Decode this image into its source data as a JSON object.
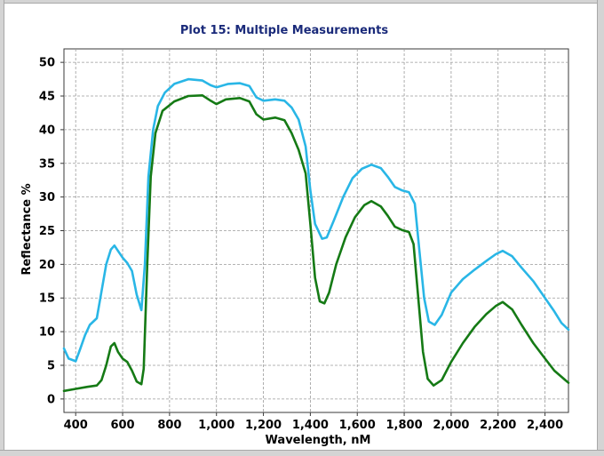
{
  "chart_data": {
    "type": "line",
    "title": "Plot 15: Multiple Measurements",
    "xlabel": "Wavelength, nM",
    "ylabel": "Reflectance %",
    "xlim": [
      350,
      2500
    ],
    "ylim": [
      -2,
      52
    ],
    "x_ticks": [
      400,
      600,
      800,
      1000,
      1200,
      1400,
      1600,
      1800,
      2000,
      2200,
      2400
    ],
    "x_tick_labels": [
      "400",
      "600",
      "800",
      "1,000",
      "1,200",
      "1,400",
      "1,600",
      "1,800",
      "2,000",
      "2,200",
      "2,400"
    ],
    "y_ticks": [
      0,
      5,
      10,
      15,
      20,
      25,
      30,
      35,
      40,
      45,
      50
    ],
    "y_tick_labels": [
      "0",
      "5",
      "10",
      "15",
      "20",
      "25",
      "30",
      "35",
      "40",
      "45",
      "50"
    ],
    "grid": true,
    "series": [
      {
        "color": "#29b6e6",
        "points": [
          [
            350,
            7.5
          ],
          [
            370,
            6
          ],
          [
            400,
            5.6
          ],
          [
            420,
            7.5
          ],
          [
            440,
            9.5
          ],
          [
            460,
            11
          ],
          [
            490,
            12
          ],
          [
            510,
            16
          ],
          [
            530,
            20
          ],
          [
            550,
            22.2
          ],
          [
            565,
            22.8
          ],
          [
            580,
            22
          ],
          [
            600,
            21
          ],
          [
            620,
            20.2
          ],
          [
            640,
            19
          ],
          [
            660,
            15.5
          ],
          [
            680,
            13.2
          ],
          [
            695,
            20
          ],
          [
            710,
            33
          ],
          [
            730,
            40
          ],
          [
            750,
            43.5
          ],
          [
            780,
            45.5
          ],
          [
            820,
            46.8
          ],
          [
            880,
            47.5
          ],
          [
            940,
            47.3
          ],
          [
            975,
            46.6
          ],
          [
            1000,
            46.3
          ],
          [
            1050,
            46.8
          ],
          [
            1100,
            46.9
          ],
          [
            1140,
            46.5
          ],
          [
            1170,
            44.8
          ],
          [
            1200,
            44.3
          ],
          [
            1250,
            44.5
          ],
          [
            1290,
            44.3
          ],
          [
            1320,
            43.3
          ],
          [
            1350,
            41.5
          ],
          [
            1380,
            37.5
          ],
          [
            1400,
            31
          ],
          [
            1420,
            26
          ],
          [
            1450,
            23.8
          ],
          [
            1470,
            24
          ],
          [
            1500,
            26.5
          ],
          [
            1540,
            30
          ],
          [
            1580,
            32.8
          ],
          [
            1620,
            34.2
          ],
          [
            1660,
            34.8
          ],
          [
            1700,
            34.3
          ],
          [
            1730,
            33
          ],
          [
            1760,
            31.5
          ],
          [
            1790,
            31
          ],
          [
            1820,
            30.7
          ],
          [
            1845,
            29
          ],
          [
            1865,
            22
          ],
          [
            1885,
            15
          ],
          [
            1905,
            11.5
          ],
          [
            1930,
            11
          ],
          [
            1960,
            12.5
          ],
          [
            2000,
            15.8
          ],
          [
            2050,
            17.8
          ],
          [
            2100,
            19.2
          ],
          [
            2150,
            20.5
          ],
          [
            2190,
            21.5
          ],
          [
            2220,
            22
          ],
          [
            2260,
            21.2
          ],
          [
            2300,
            19.5
          ],
          [
            2350,
            17.5
          ],
          [
            2400,
            15
          ],
          [
            2440,
            13
          ],
          [
            2470,
            11.3
          ],
          [
            2500,
            10.3
          ]
        ]
      },
      {
        "color": "#157a15",
        "points": [
          [
            350,
            1.2
          ],
          [
            400,
            1.5
          ],
          [
            450,
            1.8
          ],
          [
            490,
            2
          ],
          [
            510,
            2.8
          ],
          [
            530,
            5
          ],
          [
            550,
            7.8
          ],
          [
            565,
            8.3
          ],
          [
            580,
            7
          ],
          [
            600,
            6
          ],
          [
            620,
            5.5
          ],
          [
            640,
            4.2
          ],
          [
            660,
            2.6
          ],
          [
            680,
            2.2
          ],
          [
            690,
            4.5
          ],
          [
            705,
            20
          ],
          [
            720,
            33
          ],
          [
            740,
            39.5
          ],
          [
            770,
            42.8
          ],
          [
            820,
            44.2
          ],
          [
            880,
            45
          ],
          [
            940,
            45.1
          ],
          [
            975,
            44.3
          ],
          [
            1000,
            43.8
          ],
          [
            1040,
            44.5
          ],
          [
            1100,
            44.7
          ],
          [
            1140,
            44.2
          ],
          [
            1170,
            42.3
          ],
          [
            1200,
            41.5
          ],
          [
            1250,
            41.8
          ],
          [
            1290,
            41.4
          ],
          [
            1320,
            39.5
          ],
          [
            1350,
            37
          ],
          [
            1380,
            33.5
          ],
          [
            1400,
            26
          ],
          [
            1420,
            18
          ],
          [
            1440,
            14.5
          ],
          [
            1460,
            14.2
          ],
          [
            1480,
            15.8
          ],
          [
            1510,
            20
          ],
          [
            1550,
            24
          ],
          [
            1590,
            27
          ],
          [
            1630,
            28.8
          ],
          [
            1660,
            29.4
          ],
          [
            1700,
            28.6
          ],
          [
            1730,
            27.2
          ],
          [
            1760,
            25.6
          ],
          [
            1790,
            25.1
          ],
          [
            1820,
            24.8
          ],
          [
            1840,
            23
          ],
          [
            1860,
            15
          ],
          [
            1880,
            7
          ],
          [
            1900,
            3
          ],
          [
            1925,
            2
          ],
          [
            1960,
            2.8
          ],
          [
            2000,
            5.5
          ],
          [
            2050,
            8.3
          ],
          [
            2100,
            10.7
          ],
          [
            2150,
            12.6
          ],
          [
            2190,
            13.8
          ],
          [
            2220,
            14.4
          ],
          [
            2260,
            13.3
          ],
          [
            2300,
            11
          ],
          [
            2350,
            8.3
          ],
          [
            2400,
            6
          ],
          [
            2440,
            4.2
          ],
          [
            2470,
            3.3
          ],
          [
            2500,
            2.4
          ]
        ]
      }
    ]
  }
}
